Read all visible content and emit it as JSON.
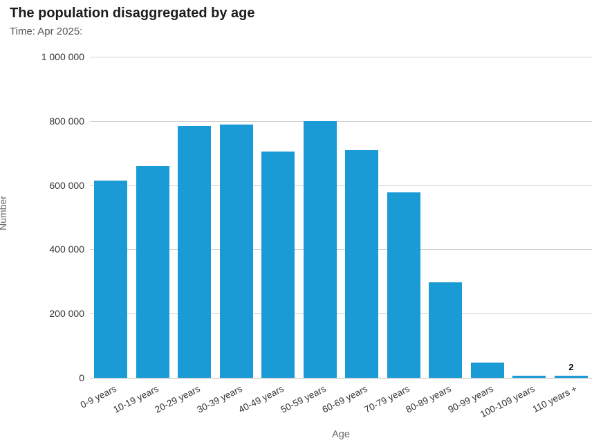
{
  "chart_data": {
    "type": "bar",
    "title": "The population disaggregated by age",
    "subtitle": "Time: Apr 2025:",
    "xlabel": "Age",
    "ylabel": "Number",
    "ylim": [
      0,
      1000000
    ],
    "grid": true,
    "legend_position": "none",
    "bar_color": "#1a9bd5",
    "yticks": [
      {
        "value": 0,
        "label": "0"
      },
      {
        "value": 200000,
        "label": "200 000"
      },
      {
        "value": 400000,
        "label": "400 000"
      },
      {
        "value": 600000,
        "label": "600 000"
      },
      {
        "value": 800000,
        "label": "800 000"
      },
      {
        "value": 1000000,
        "label": "1 000 000"
      }
    ],
    "categories": [
      "0-9 years",
      "10-19 years",
      "20-29 years",
      "30-39 years",
      "40-49 years",
      "50-59 years",
      "60-69 years",
      "70-79 years",
      "80-89 years",
      "90-99 years",
      "100-109 years",
      "110 years +"
    ],
    "values": [
      615000,
      660000,
      785000,
      788000,
      705000,
      800000,
      710000,
      578000,
      297000,
      48000,
      3000,
      2
    ],
    "data_labels": [
      {
        "index": 11,
        "text": "2"
      }
    ]
  }
}
